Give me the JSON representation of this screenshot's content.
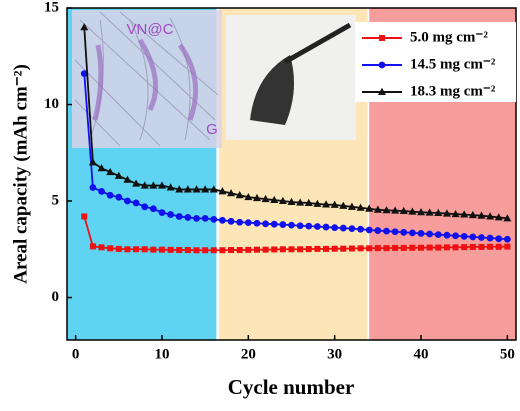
{
  "chart_data": {
    "type": "line",
    "xlabel": "Cycle number",
    "ylabel": "Areal capacity (mAh cm⁻²)",
    "x": [
      1,
      2,
      3,
      4,
      5,
      6,
      7,
      8,
      9,
      10,
      11,
      12,
      13,
      14,
      15,
      16,
      17,
      18,
      19,
      20,
      21,
      22,
      23,
      24,
      25,
      26,
      27,
      28,
      29,
      30,
      31,
      32,
      33,
      34,
      35,
      36,
      37,
      38,
      39,
      40,
      41,
      42,
      43,
      44,
      45,
      46,
      47,
      48,
      49,
      50
    ],
    "series": [
      {
        "name": "5.0 mg cm⁻²",
        "color": "#ee1111",
        "marker": "square",
        "values": [
          4.2,
          2.65,
          2.6,
          2.55,
          2.52,
          2.5,
          2.5,
          2.5,
          2.48,
          2.48,
          2.47,
          2.46,
          2.46,
          2.45,
          2.45,
          2.45,
          2.45,
          2.46,
          2.46,
          2.47,
          2.48,
          2.48,
          2.49,
          2.5,
          2.5,
          2.5,
          2.51,
          2.52,
          2.52,
          2.53,
          2.53,
          2.54,
          2.55,
          2.55,
          2.56,
          2.56,
          2.57,
          2.57,
          2.58,
          2.58,
          2.59,
          2.59,
          2.6,
          2.6,
          2.61,
          2.62,
          2.62,
          2.63,
          2.63,
          2.64
        ]
      },
      {
        "name": "14.5 mg cm⁻²",
        "color": "#1111ee",
        "marker": "circle",
        "values": [
          11.6,
          5.7,
          5.5,
          5.3,
          5.2,
          5.0,
          4.9,
          4.7,
          4.6,
          4.4,
          4.3,
          4.2,
          4.15,
          4.1,
          4.1,
          4.05,
          4.0,
          3.95,
          3.9,
          3.88,
          3.85,
          3.82,
          3.8,
          3.78,
          3.75,
          3.72,
          3.7,
          3.68,
          3.65,
          3.62,
          3.6,
          3.57,
          3.54,
          3.5,
          3.47,
          3.44,
          3.41,
          3.38,
          3.35,
          3.32,
          3.29,
          3.26,
          3.23,
          3.2,
          3.17,
          3.14,
          3.11,
          3.08,
          3.05,
          3.02
        ]
      },
      {
        "name": "18.3 mg cm⁻²",
        "color": "#111111",
        "marker": "triangle",
        "values": [
          14.0,
          7.0,
          6.7,
          6.5,
          6.3,
          6.1,
          5.9,
          5.8,
          5.8,
          5.8,
          5.7,
          5.6,
          5.6,
          5.6,
          5.6,
          5.6,
          5.5,
          5.4,
          5.3,
          5.2,
          5.15,
          5.1,
          5.05,
          5.0,
          4.95,
          4.92,
          4.9,
          4.85,
          4.82,
          4.8,
          4.75,
          4.7,
          4.65,
          4.6,
          4.55,
          4.52,
          4.5,
          4.48,
          4.45,
          4.42,
          4.4,
          4.38,
          4.35,
          4.32,
          4.3,
          4.27,
          4.24,
          4.2,
          4.15,
          4.1
        ]
      }
    ],
    "regions": [
      {
        "xmin": -1,
        "xmax": 16.3,
        "color": "#5fd4f2"
      },
      {
        "xmin": 16.6,
        "xmax": 33.8,
        "color": "#fce6b8"
      },
      {
        "xmin": 34,
        "xmax": 51,
        "color": "#f79d9b"
      }
    ],
    "annotations": [
      "VN@C",
      "G"
    ],
    "xlim": [
      -1,
      51
    ],
    "xticks": [
      0,
      10,
      20,
      30,
      40,
      50
    ],
    "ylim": [
      -2.2,
      15
    ],
    "yticks": [
      0,
      5,
      10,
      15
    ],
    "legend": "upper right"
  }
}
